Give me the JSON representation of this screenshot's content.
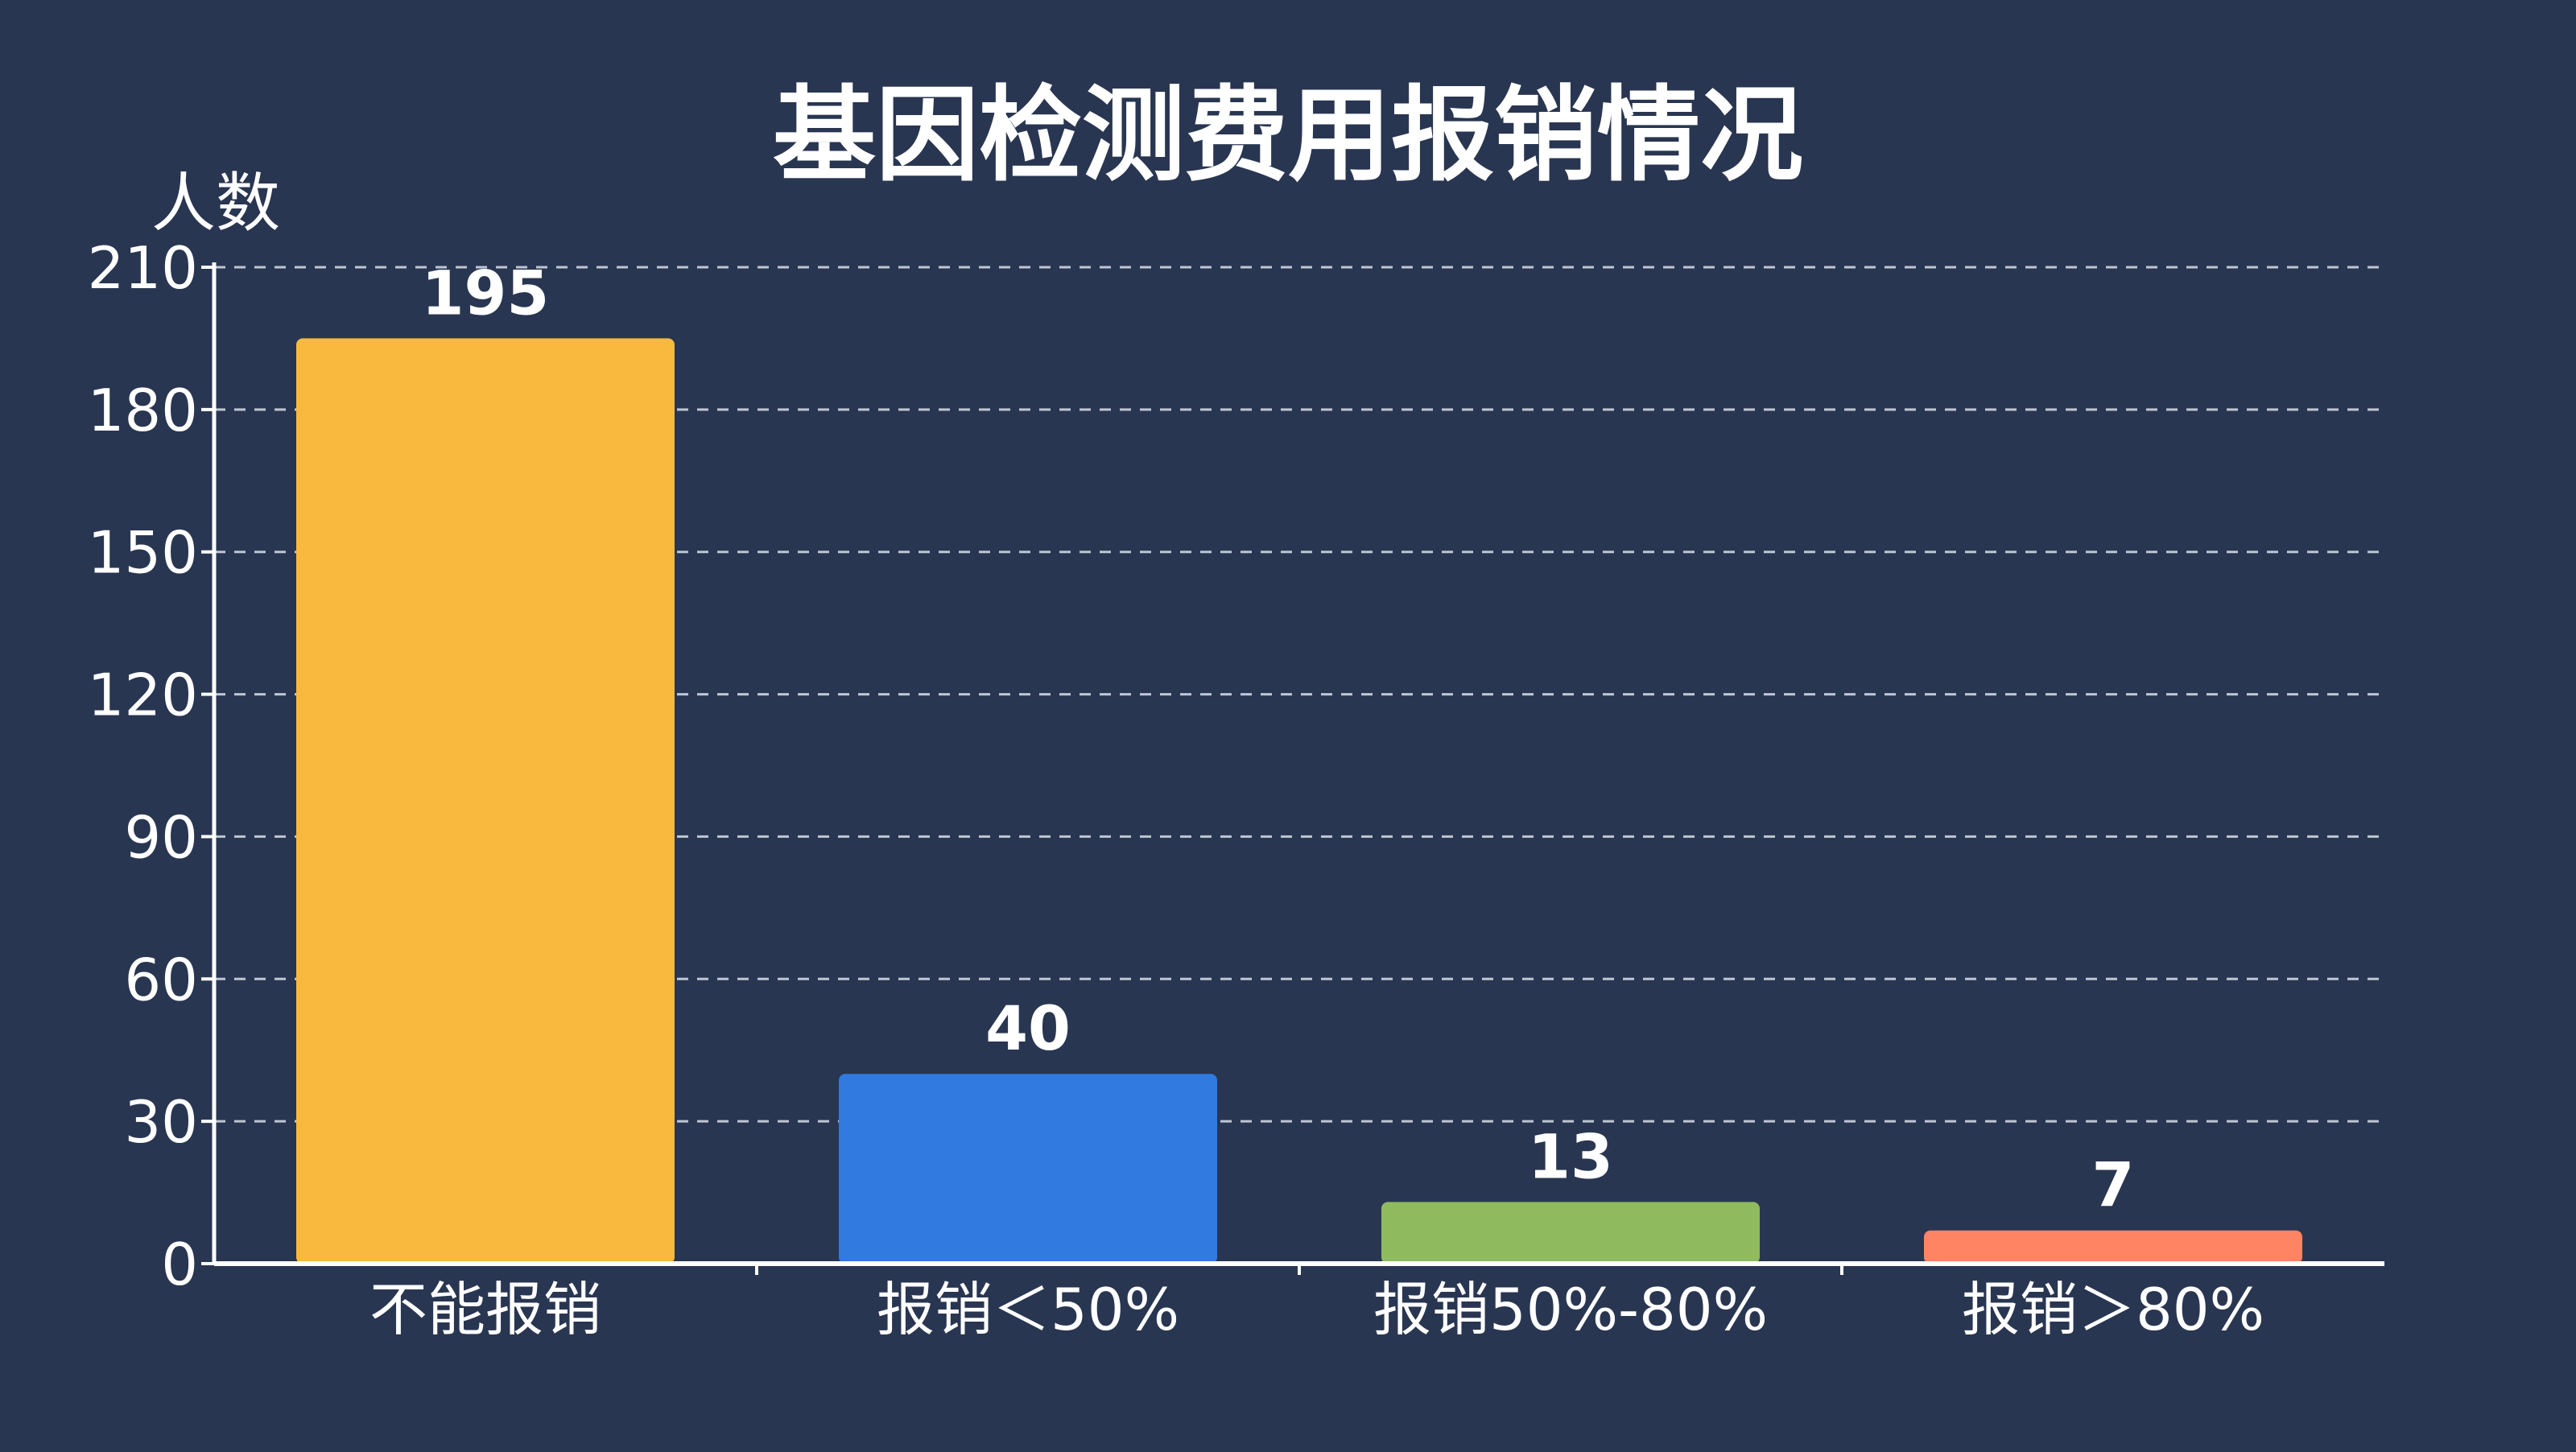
{
  "colors": {
    "background": "#293651",
    "axis": "#ffffff",
    "grid": "#cfd6e2",
    "text": "#ffffff"
  },
  "chart_data": {
    "type": "bar",
    "title": "基因检测费用报销情况",
    "ylabel": "人数",
    "xlabel": "",
    "categories": [
      "不能报销",
      "报销＜50%",
      "报销50%-80%",
      "报销＞80%"
    ],
    "values": [
      195,
      40,
      13,
      7
    ],
    "data_labels": [
      "195",
      "40",
      "13",
      "7"
    ],
    "bar_colors": [
      "#F9B93F",
      "#307AE0",
      "#8FBB5E",
      "#FF8463"
    ],
    "ylim": [
      0,
      210
    ],
    "yticks": [
      0,
      30,
      60,
      90,
      120,
      150,
      180,
      210
    ],
    "ytick_labels": [
      "0",
      "30",
      "60",
      "90",
      "120",
      "150",
      "180",
      "210"
    ],
    "grid": true,
    "grid_style": "dashed",
    "legend": "none"
  }
}
